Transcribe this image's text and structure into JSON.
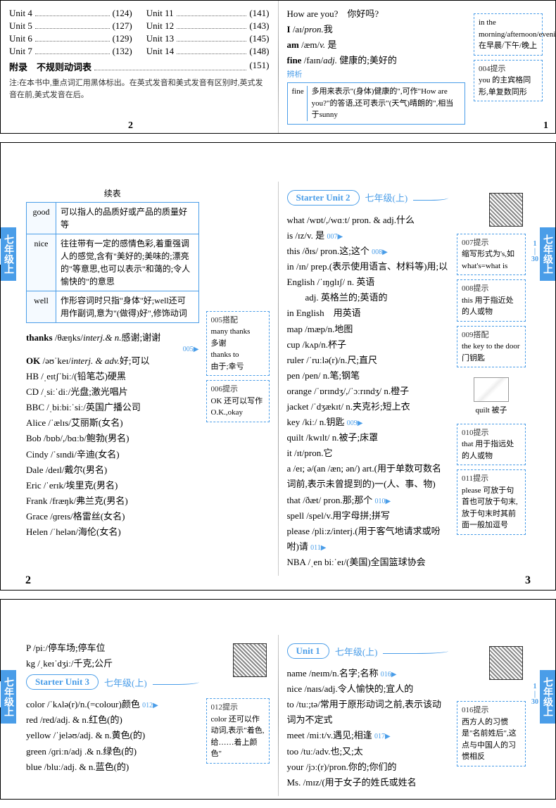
{
  "panel1": {
    "left": {
      "toc_left": [
        {
          "u": "Unit 4",
          "p": "(124)"
        },
        {
          "u": "Unit 5",
          "p": "(127)"
        },
        {
          "u": "Unit 6",
          "p": "(129)"
        },
        {
          "u": "Unit 7",
          "p": "(132)"
        }
      ],
      "toc_right": [
        {
          "u": "Unit 11",
          "p": "(141)"
        },
        {
          "u": "Unit 12",
          "p": "(143)"
        },
        {
          "u": "Unit 13",
          "p": "(145)"
        },
        {
          "u": "Unit 14",
          "p": "(148)"
        }
      ],
      "appendix": {
        "label": "附录　不规则动词表",
        "page": "(151)"
      },
      "note": "注:在本书中,重点词汇用黑体标出。在英式发音和美式发音有区别时,英式发音在前,美式发音在后。",
      "pagenum": "2"
    },
    "right": {
      "entries": [
        "How are you?　你好吗?",
        "I /aɪ/pron.我",
        "am /æm/v. 是",
        "fine /faɪn/adj. 健康的;美好的"
      ],
      "analysis_label": "辨析",
      "fine_label": "fine",
      "analysis": "多用来表示\"(身体)健康的\",可作\"How are you?\"的答语,还可表示\"(天气)晴朗的\",相当于sunny",
      "tips": [
        {
          "title": "",
          "text": "in the morning/afternoon/evening\n在早晨/下午/晚上"
        },
        {
          "title": "004提示",
          "text": "you 的主宾格同形,单复数同形"
        }
      ],
      "pagenum": "1"
    }
  },
  "panel2": {
    "side_label": "七年级上",
    "side_nums": "1\n|\n30",
    "left": {
      "cont_label": "续表",
      "table": [
        {
          "h": "good",
          "c": "可以指人的品质好或产品的质量好等"
        },
        {
          "h": "nice",
          "c": "往往带有一定的感情色彩,着重强调人的感觉,含有\"美好的;美味的;漂亮的\"等意思,也可以表示\"和蔼的;令人愉快的\"的意思"
        },
        {
          "h": "well",
          "c": "作形容词时只指\"身体\"好;well还可用作副词,意为\"(做得)好\",修饰动词"
        }
      ],
      "thanks": "thanks /θæŋks/interj.& n.感谢;谢谢",
      "marker005": "005▶",
      "ok": "OK /əʊˈkeɪ/interj. & adv.好;可以",
      "words": [
        "HB /ˌeɪtʃˈbiː/(铅笔芯)硬黑",
        "CD /ˌsiːˈdiː/光盘;激光唱片",
        "BBC /ˌbiːbiːˈsiː/英国广播公司",
        "Alice /ˈælɪs/艾丽斯(女名)",
        "Bob /bɒb/,/bɑːb/鲍勃(男名)",
        "Cindy /ˈsɪndi/辛迪(女名)",
        "Dale /deɪl/戴尔(男名)",
        "Eric /ˈerɪk/埃里克(男名)",
        "Frank /fræŋk/弗兰克(男名)",
        "Grace /ɡreɪs/格雷丝(女名)",
        "Helen /ˈhelən/海伦(女名)"
      ],
      "tip005": {
        "title": "005搭配",
        "text": "many thanks\n多谢\nthanks to\n由于;幸亏"
      },
      "tip006": {
        "title": "006提示",
        "text": "OK 还可以写作\nO.K.,okay"
      },
      "pagenum": "2"
    },
    "right": {
      "unit_label": "Starter Unit 2",
      "grade": "七年级(上)",
      "entries": [
        "what /wɒt/,/wɑːt/ pron. & adj.什么",
        "is /ɪz/v. 是 007▶",
        "this /ðɪs/ pron.这;这个 008▶",
        "in /ɪn/ prep.(表示使用语言、材料等)用;以",
        "English /ˈɪŋɡlɪʃ/ n. 英语\n　　adj. 英格兰的;英语的",
        "in English　用英语",
        "map /mæp/n.地图",
        "cup /kʌp/n.杯子",
        "ruler /ˈruːlə(r)/n.尺;直尺",
        "pen /pen/ n.笔;钢笔",
        "orange /ˈɒrɪndʒ/,/ˈɔːrɪndʒ/ n.橙子",
        "jacket /ˈdʒækɪt/ n.夹克衫;短上衣",
        "key /kiː/ n.钥匙 009▶",
        "quilt /kwɪlt/ n.被子;床罩",
        "it /ɪt/pron.它",
        "a /eɪ; ə/(an /æn; ən/) art.(用于单数可数名词前,表示未曾提到的)一(人、事、物)",
        "that /ðæt/ pron.那;那个 010▶",
        "spell /spel/v.用字母拼;拼写",
        "please /pliːz/interj.(用于客气地请求或吩咐)请 011▶",
        "NBA /ˌen biːˈeɪ/(美国)全国篮球协会"
      ],
      "tips": [
        {
          "title": "007提示",
          "text": "缩写形式为's,如what's=what is"
        },
        {
          "title": "008提示",
          "text": "this 用于指近处的人或物"
        },
        {
          "title": "009搭配",
          "text": "the key to the door\n门钥匙"
        },
        {
          "title": "",
          "text": "quilt 被子",
          "img": true
        },
        {
          "title": "010提示",
          "text": "that 用于指远处的人或物"
        },
        {
          "title": "011提示",
          "text": "please 可放于句首也可放于句末,放于句末时其前面一般加逗号"
        }
      ],
      "pagenum": "3"
    }
  },
  "panel3": {
    "side_label": "七年级上",
    "side_nums": "1\n|\n30",
    "left": {
      "top_entries": [
        "P /piː/停车场;停车位",
        "kg /ˌkeɪˈdʒiː/千克;公斤"
      ],
      "unit_label": "Starter Unit 3",
      "grade": "七年级(上)",
      "entries": [
        "color /ˈkʌlə(r)/n.(=colour)颜色 012▶",
        "red /red/adj. & n.红色(的)",
        "yellow /ˈjeləʊ/adj. & n.黄色(的)",
        "green /ɡriːn/adj .& n.绿色(的)",
        "blue /bluː/adj. & n.蓝色(的)"
      ],
      "tip012": {
        "title": "012提示",
        "text": "color 还可以作动词,表示\"着色,给……着上颜色\""
      }
    },
    "right": {
      "unit_label": "Unit 1",
      "grade": "七年级(上)",
      "entries": [
        "name /neɪm/n.名字;名称 016▶",
        "nice /naɪs/adj.令人愉快的;宜人的",
        "to /tuː;tə/常用于原形动词之前,表示该动词为不定式",
        "meet /miːt/v.遇见;相逢 017▶",
        "too /tuː/adv.也;又;太",
        "your /jɔː(r)/pron.你的;你们的",
        "Ms. /mɪz/(用于女子的姓氏或姓名"
      ],
      "tip016": {
        "title": "016提示",
        "text": "西方人的习惯是\"名前姓后\",这点与中国人的习惯相反"
      }
    }
  }
}
